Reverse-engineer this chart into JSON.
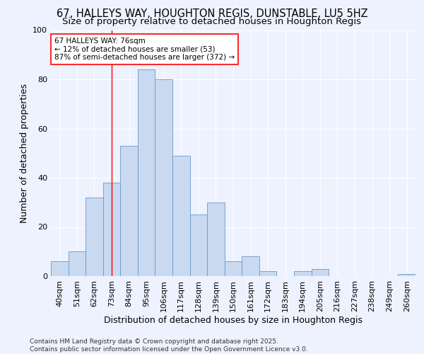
{
  "title_line1": "67, HALLEYS WAY, HOUGHTON REGIS, DUNSTABLE, LU5 5HZ",
  "title_line2": "Size of property relative to detached houses in Houghton Regis",
  "xlabel": "Distribution of detached houses by size in Houghton Regis",
  "ylabel": "Number of detached properties",
  "categories": [
    "40sqm",
    "51sqm",
    "62sqm",
    "73sqm",
    "84sqm",
    "95sqm",
    "106sqm",
    "117sqm",
    "128sqm",
    "139sqm",
    "150sqm",
    "161sqm",
    "172sqm",
    "183sqm",
    "194sqm",
    "205sqm",
    "216sqm",
    "227sqm",
    "238sqm",
    "249sqm",
    "260sqm"
  ],
  "values": [
    6,
    10,
    32,
    38,
    53,
    84,
    80,
    49,
    25,
    30,
    6,
    8,
    2,
    0,
    2,
    3,
    0,
    0,
    0,
    0,
    1
  ],
  "bar_color": "#c9d9f0",
  "bar_edge_color": "#6699cc",
  "vline_x": 3.0,
  "vline_color": "red",
  "annotation_text": "67 HALLEYS WAY: 76sqm\n← 12% of detached houses are smaller (53)\n87% of semi-detached houses are larger (372) →",
  "annotation_box_color": "white",
  "annotation_box_edge": "red",
  "ylim": [
    0,
    100
  ],
  "yticks": [
    0,
    20,
    40,
    60,
    80,
    100
  ],
  "background_color": "#eef2ff",
  "plot_background": "#eef2ff",
  "footer": "Contains HM Land Registry data © Crown copyright and database right 2025.\nContains public sector information licensed under the Open Government Licence v3.0.",
  "title_fontsize": 10.5,
  "subtitle_fontsize": 9.5,
  "axis_label_fontsize": 9,
  "tick_fontsize": 8,
  "annotation_fontsize": 7.5,
  "footer_fontsize": 6.5
}
